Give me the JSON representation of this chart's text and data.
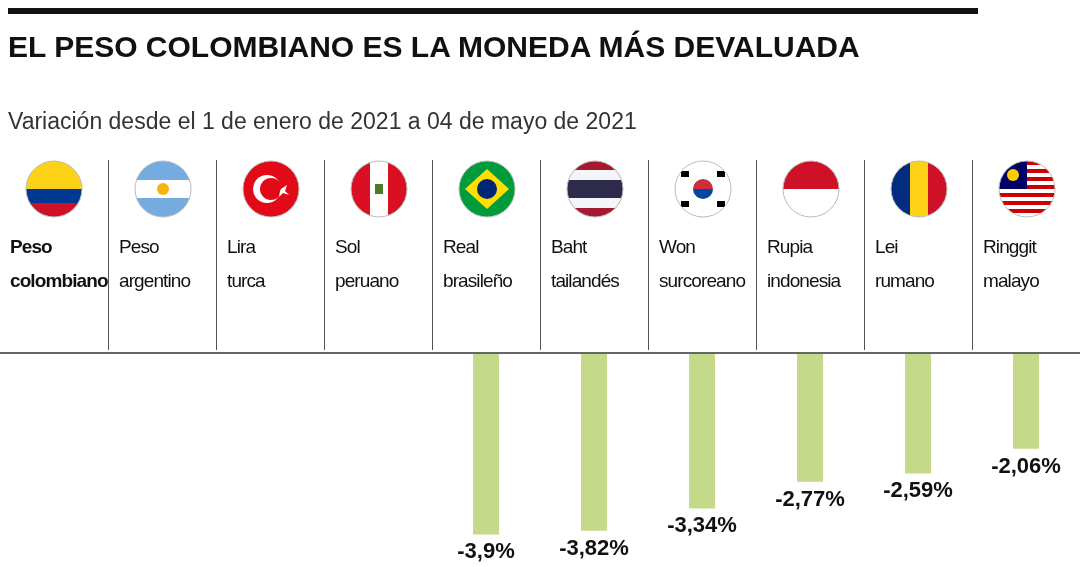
{
  "chart_data": {
    "type": "bar",
    "title": "EL PESO COLOMBIANO ES LA MONEDA MÁS DEVALUADA",
    "subtitle": "Variación desde el 1 de enero de 2021 a 04 de mayo de 2021",
    "categories": [
      "Peso colombiano",
      "Peso argentino",
      "Lira turca",
      "Sol peruano",
      "Real brasileño",
      "Baht tailandés",
      "Won surcoreano",
      "Rupia indonesia",
      "Lei rumano",
      "Ringgit malayo"
    ],
    "values": [
      null,
      null,
      null,
      null,
      -3.9,
      -3.82,
      -3.34,
      -2.77,
      -2.59,
      -2.06
    ],
    "value_labels": [
      null,
      null,
      null,
      null,
      "-3,9%",
      "-3,82%",
      "-3,34%",
      "-2,77%",
      "-2,59%",
      "-2,06%"
    ],
    "colors": [
      "#7ecde6",
      "#c5d98a",
      "#c5d98a",
      "#c5d98a",
      "#c5d98a",
      "#c5d98a",
      "#c5d98a",
      "#c5d98a",
      "#c5d98a",
      "#c5d98a"
    ],
    "ylim": [
      -4.6,
      0
    ]
  }
}
